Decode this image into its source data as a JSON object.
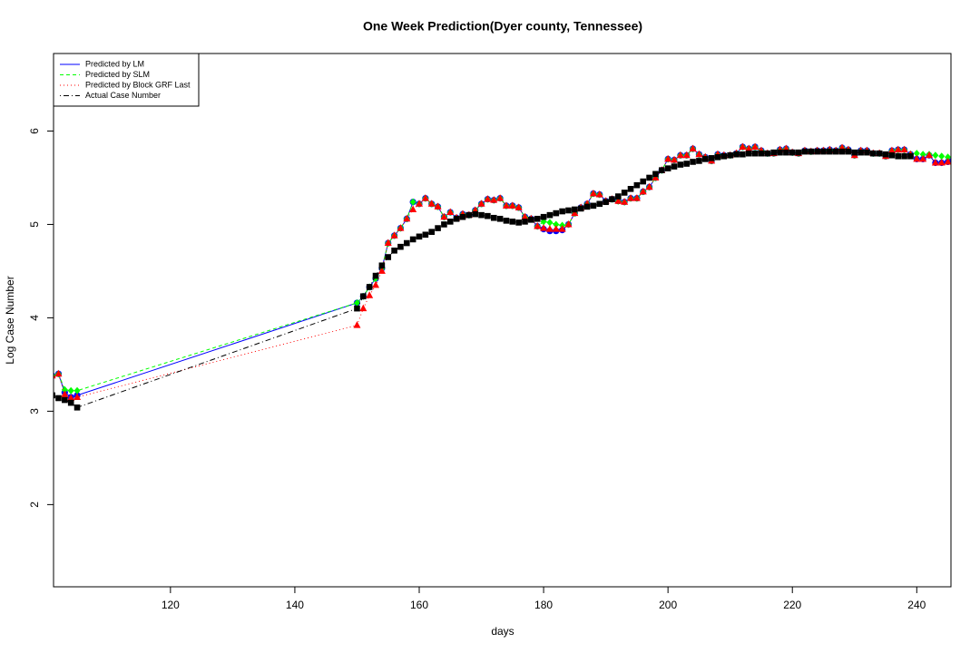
{
  "chart_data": {
    "type": "line",
    "title": "One Week Prediction(Dyer county, Tennessee)",
    "x_label": "days",
    "y_label": "Log Case Number",
    "xlim": [
      101.2,
      245.5
    ],
    "ylim": [
      1.12,
      6.83
    ],
    "xticks": [
      120,
      140,
      160,
      180,
      200,
      220,
      240
    ],
    "yticks": [
      2,
      3,
      4,
      5,
      6
    ],
    "legend": "top-left",
    "x": [
      101,
      102,
      103,
      104,
      105,
      150,
      151,
      152,
      153,
      154,
      155,
      156,
      157,
      158,
      159,
      160,
      161,
      162,
      163,
      164,
      165,
      166,
      167,
      168,
      169,
      170,
      171,
      172,
      173,
      174,
      175,
      176,
      177,
      178,
      179,
      180,
      181,
      182,
      183,
      184,
      185,
      186,
      187,
      188,
      189,
      190,
      191,
      192,
      193,
      194,
      195,
      196,
      197,
      198,
      199,
      200,
      201,
      202,
      203,
      204,
      205,
      206,
      207,
      208,
      209,
      210,
      211,
      212,
      213,
      214,
      215,
      216,
      217,
      218,
      219,
      220,
      221,
      222,
      223,
      224,
      225,
      226,
      227,
      228,
      229,
      230,
      231,
      232,
      233,
      234,
      235,
      236,
      237,
      238,
      239,
      240,
      241,
      242,
      243,
      244,
      245,
      246
    ],
    "series": [
      {
        "name": "Predicted by LM",
        "color": "#0000ff",
        "line_style": "solid",
        "marker": "circle",
        "values": [
          3.38,
          3.4,
          3.2,
          3.15,
          3.17,
          4.16,
          4.23,
          4.33,
          4.42,
          4.53,
          4.8,
          4.88,
          4.96,
          5.06,
          5.24,
          5.22,
          5.28,
          5.22,
          5.19,
          5.08,
          5.13,
          5.07,
          5.11,
          5.1,
          5.15,
          5.22,
          5.27,
          5.26,
          5.28,
          5.2,
          5.2,
          5.18,
          5.08,
          5.06,
          4.98,
          4.95,
          4.93,
          4.93,
          4.94,
          5.0,
          5.12,
          5.18,
          5.22,
          5.33,
          5.32,
          5.25,
          5.27,
          5.25,
          5.24,
          5.28,
          5.28,
          5.35,
          5.4,
          5.5,
          5.58,
          5.7,
          5.69,
          5.74,
          5.74,
          5.81,
          5.75,
          5.72,
          5.68,
          5.75,
          5.74,
          5.74,
          5.76,
          5.83,
          5.81,
          5.83,
          5.79,
          5.76,
          5.76,
          5.8,
          5.81,
          5.77,
          5.76,
          5.79,
          5.78,
          5.79,
          5.79,
          5.8,
          5.79,
          5.82,
          5.8,
          5.74,
          5.79,
          5.79,
          5.76,
          5.76,
          5.73,
          5.79,
          5.8,
          5.8,
          5.75,
          5.7,
          5.7,
          5.74,
          5.66,
          5.66,
          5.67,
          5.75
        ]
      },
      {
        "name": "Predicted by SLM",
        "color": "#00ff00",
        "line_style": "dashed",
        "marker": "diamond",
        "values": [
          3.38,
          3.4,
          3.23,
          3.22,
          3.22,
          4.16,
          4.23,
          4.33,
          4.42,
          4.53,
          4.8,
          4.88,
          4.96,
          5.06,
          5.24,
          5.22,
          5.28,
          5.22,
          5.19,
          5.08,
          5.13,
          5.07,
          5.11,
          5.1,
          5.15,
          5.22,
          5.27,
          5.26,
          5.28,
          5.2,
          5.2,
          5.18,
          5.08,
          5.06,
          4.98,
          5.03,
          5.02,
          5.0,
          4.99,
          5.0,
          5.12,
          5.18,
          5.22,
          5.33,
          5.32,
          5.25,
          5.27,
          5.25,
          5.24,
          5.28,
          5.28,
          5.35,
          5.4,
          5.5,
          5.58,
          5.7,
          5.69,
          5.74,
          5.74,
          5.81,
          5.75,
          5.72,
          5.68,
          5.75,
          5.74,
          5.74,
          5.76,
          5.83,
          5.81,
          5.83,
          5.79,
          5.76,
          5.76,
          5.8,
          5.81,
          5.77,
          5.76,
          5.79,
          5.78,
          5.79,
          5.79,
          5.8,
          5.79,
          5.82,
          5.8,
          5.74,
          5.79,
          5.79,
          5.76,
          5.76,
          5.73,
          5.79,
          5.8,
          5.8,
          5.75,
          5.76,
          5.75,
          5.75,
          5.74,
          5.73,
          5.72,
          5.75
        ]
      },
      {
        "name": "Predicted by Block GRF Last",
        "color": "#ff0000",
        "line_style": "dotted",
        "marker": "triangle",
        "values": [
          3.38,
          3.4,
          3.18,
          3.14,
          3.15,
          3.92,
          4.1,
          4.24,
          4.35,
          4.5,
          4.8,
          4.88,
          4.96,
          5.06,
          5.16,
          5.22,
          5.28,
          5.22,
          5.19,
          5.08,
          5.13,
          5.07,
          5.11,
          5.1,
          5.15,
          5.22,
          5.27,
          5.26,
          5.28,
          5.2,
          5.2,
          5.18,
          5.08,
          5.06,
          4.98,
          4.96,
          4.95,
          4.95,
          4.95,
          5.0,
          5.12,
          5.18,
          5.22,
          5.33,
          5.32,
          5.25,
          5.27,
          5.25,
          5.24,
          5.28,
          5.28,
          5.35,
          5.4,
          5.5,
          5.58,
          5.7,
          5.69,
          5.74,
          5.74,
          5.81,
          5.75,
          5.72,
          5.68,
          5.75,
          5.74,
          5.74,
          5.76,
          5.83,
          5.81,
          5.83,
          5.79,
          5.76,
          5.76,
          5.8,
          5.81,
          5.77,
          5.76,
          5.79,
          5.78,
          5.79,
          5.79,
          5.8,
          5.79,
          5.82,
          5.8,
          5.74,
          5.79,
          5.79,
          5.76,
          5.76,
          5.73,
          5.79,
          5.8,
          5.8,
          5.75,
          5.7,
          5.7,
          5.74,
          5.66,
          5.66,
          5.67,
          5.75
        ]
      },
      {
        "name": "Actual Case Number",
        "color": "#000000",
        "line_style": "dotdash",
        "marker": "square",
        "values": [
          3.17,
          3.14,
          3.12,
          3.09,
          3.04,
          4.1,
          4.23,
          4.33,
          4.45,
          4.56,
          4.65,
          4.72,
          4.76,
          4.8,
          4.84,
          4.87,
          4.89,
          4.92,
          4.96,
          5.0,
          5.03,
          5.06,
          5.08,
          5.1,
          5.11,
          5.1,
          5.09,
          5.07,
          5.06,
          5.04,
          5.03,
          5.02,
          5.03,
          5.05,
          5.06,
          5.08,
          5.1,
          5.12,
          5.14,
          5.15,
          5.16,
          5.17,
          5.19,
          5.2,
          5.22,
          5.24,
          5.27,
          5.3,
          5.34,
          5.38,
          5.42,
          5.46,
          5.5,
          5.54,
          5.58,
          5.6,
          5.62,
          5.64,
          5.65,
          5.67,
          5.68,
          5.7,
          5.71,
          5.72,
          5.73,
          5.74,
          5.75,
          5.75,
          5.76,
          5.76,
          5.76,
          5.76,
          5.77,
          5.77,
          5.77,
          5.77,
          5.77,
          5.78,
          5.78,
          5.78,
          5.78,
          5.78,
          5.78,
          5.78,
          5.78,
          5.77,
          5.77,
          5.77,
          5.76,
          5.76,
          5.75,
          5.74,
          5.73,
          5.73,
          5.73,
          null,
          null,
          null,
          null,
          null,
          null,
          null
        ]
      }
    ]
  }
}
